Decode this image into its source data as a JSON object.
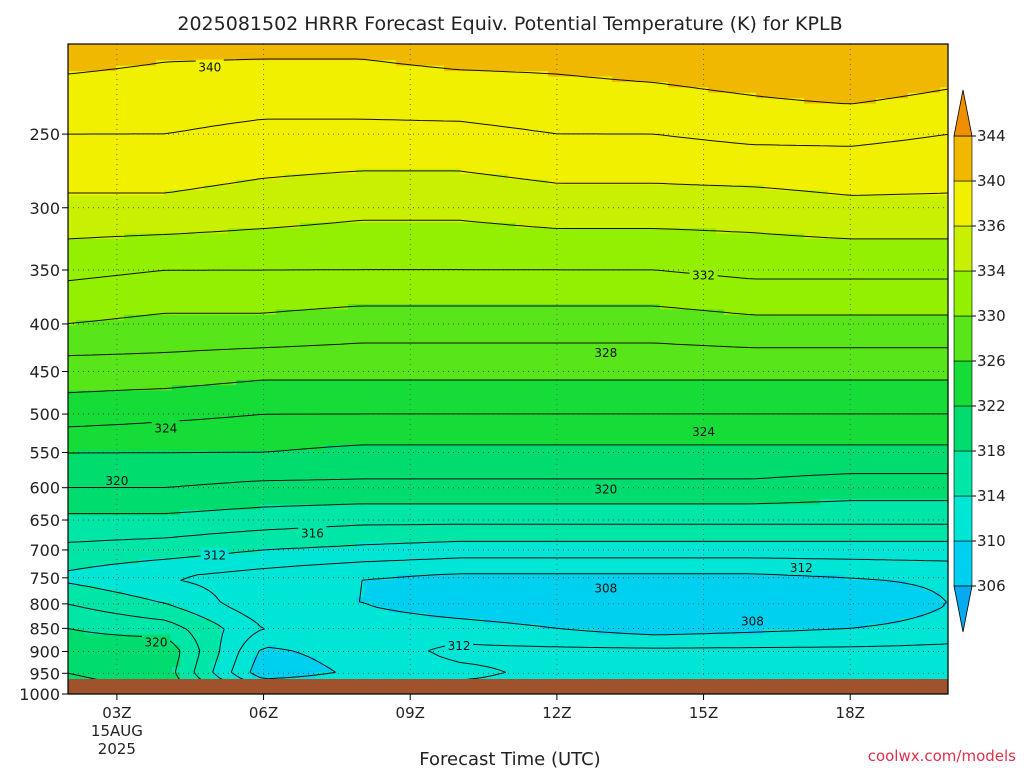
{
  "chart_data": {
    "type": "heatmap",
    "title": "2025081502 HRRR Forecast Equiv. Potential Temperature (K) for KPLB",
    "xlabel": "Forecast Time (UTC)",
    "ylabel": "",
    "x_ticks": [
      {
        "hour": 3,
        "label": "03Z",
        "sub": [
          "15AUG",
          "2025"
        ]
      },
      {
        "hour": 6,
        "label": "06Z"
      },
      {
        "hour": 9,
        "label": "09Z"
      },
      {
        "hour": 12,
        "label": "12Z"
      },
      {
        "hour": 15,
        "label": "15Z"
      },
      {
        "hour": 18,
        "label": "18Z"
      }
    ],
    "xlim": [
      2,
      20
    ],
    "y_ticks": [
      250,
      300,
      350,
      400,
      450,
      500,
      550,
      600,
      650,
      700,
      750,
      800,
      850,
      900,
      950,
      1000
    ],
    "y_tick_labels": [
      "250",
      "300",
      "350",
      "400",
      "450",
      "500",
      "550",
      "600",
      "650",
      "700",
      "750",
      "800",
      "850",
      "900",
      "950",
      "1000"
    ],
    "ylim": [
      1000,
      200
    ],
    "y_scale": "log-pressure",
    "grid": true,
    "colorbar": {
      "levels": [
        306,
        310,
        314,
        318,
        322,
        326,
        330,
        334,
        336,
        340,
        344
      ],
      "labels": [
        "306",
        "310",
        "314",
        "318",
        "322",
        "326",
        "330",
        "334",
        "336",
        "340",
        "344"
      ],
      "colors": [
        "#06aaf0",
        "#00d0f0",
        "#00e6d6",
        "#00e6a6",
        "#00dc6e",
        "#16dc38",
        "#58e61a",
        "#92f000",
        "#c8f000",
        "#f0f000",
        "#f0b800",
        "#f09000"
      ],
      "extend": "both"
    },
    "profiles": [
      {
        "hour": 2,
        "pressures": [
          200,
          250,
          300,
          350,
          400,
          450,
          500,
          550,
          600,
          650,
          700,
          750,
          800,
          850,
          900,
          950,
          1000
        ],
        "values": [
          341,
          338,
          335.5,
          332.5,
          330,
          327,
          325,
          322,
          320,
          317.5,
          315.5,
          313.5,
          316,
          318,
          319,
          320,
          321
        ]
      },
      {
        "hour": 4,
        "pressures": [
          200,
          250,
          300,
          350,
          400,
          450,
          500,
          550,
          600,
          650,
          700,
          750,
          800,
          850,
          900,
          950,
          1000
        ],
        "values": [
          340.5,
          338,
          335.5,
          332,
          329.5,
          327,
          324.5,
          322,
          320,
          317.5,
          315,
          312,
          314,
          317,
          319.5,
          319,
          320
        ]
      },
      {
        "hour": 6,
        "pressures": [
          200,
          250,
          300,
          350,
          400,
          450,
          500,
          550,
          600,
          650,
          700,
          750,
          800,
          850,
          900,
          950,
          1000
        ],
        "values": [
          340.5,
          337.5,
          335,
          332,
          329.5,
          326.5,
          324,
          322,
          319.5,
          317,
          314,
          311,
          310.5,
          312,
          309.5,
          308.5,
          314
        ]
      },
      {
        "hour": 8,
        "pressures": [
          200,
          250,
          300,
          350,
          400,
          450,
          500,
          550,
          600,
          650,
          700,
          750,
          800,
          850,
          900,
          950,
          1000
        ],
        "values": [
          340.5,
          337.5,
          334.5,
          332,
          329,
          326.5,
          324,
          321.5,
          319.5,
          316.5,
          313.5,
          310,
          310,
          311.5,
          311,
          310.5,
          313
        ]
      },
      {
        "hour": 10,
        "pressures": [
          200,
          250,
          300,
          350,
          400,
          450,
          500,
          550,
          600,
          650,
          700,
          750,
          800,
          850,
          900,
          950,
          1000
        ],
        "values": [
          341,
          337.5,
          334.5,
          332,
          329,
          326.5,
          324,
          321.5,
          319.5,
          316.5,
          313,
          309.5,
          308.5,
          311,
          312.5,
          311.5,
          313
        ]
      },
      {
        "hour": 12,
        "pressures": [
          200,
          250,
          300,
          350,
          400,
          450,
          500,
          550,
          600,
          650,
          700,
          750,
          800,
          850,
          900,
          950,
          1000
        ],
        "values": [
          341,
          338,
          335,
          332,
          329,
          326.5,
          324,
          321.5,
          319.5,
          316.5,
          313,
          309.5,
          308,
          310,
          312.5,
          312.5,
          313
        ]
      },
      {
        "hour": 14,
        "pressures": [
          200,
          250,
          300,
          350,
          400,
          450,
          500,
          550,
          600,
          650,
          700,
          750,
          800,
          850,
          900,
          950,
          1000
        ],
        "values": [
          341.5,
          338,
          335,
          332,
          329,
          326.5,
          324,
          321.5,
          319.5,
          316.5,
          313,
          309.5,
          307,
          309,
          312.5,
          313,
          313
        ]
      },
      {
        "hour": 16,
        "pressures": [
          200,
          250,
          300,
          350,
          400,
          450,
          500,
          550,
          600,
          650,
          700,
          750,
          800,
          850,
          900,
          950,
          1000
        ],
        "values": [
          342,
          338.5,
          335,
          332.5,
          329.5,
          326.5,
          324,
          321.5,
          319.5,
          316.5,
          313,
          309.5,
          306.5,
          309.5,
          312.5,
          313,
          313
        ]
      },
      {
        "hour": 18,
        "pressures": [
          200,
          250,
          300,
          350,
          400,
          450,
          500,
          550,
          600,
          650,
          700,
          750,
          800,
          850,
          900,
          950,
          1000
        ],
        "values": [
          343,
          338.5,
          335.5,
          332.5,
          329.5,
          326.5,
          324,
          321.5,
          319,
          316.5,
          313,
          310,
          307.5,
          310,
          312.5,
          313,
          313
        ]
      },
      {
        "hour": 20,
        "pressures": [
          200,
          250,
          300,
          350,
          400,
          450,
          500,
          550,
          600,
          650,
          700,
          750,
          800,
          850,
          900,
          950,
          1000
        ],
        "values": [
          342,
          338,
          335.5,
          332.5,
          329.5,
          326.5,
          324,
          321.5,
          319,
          316.5,
          313,
          310.5,
          310,
          311,
          312.5,
          313,
          313
        ]
      }
    ],
    "contour_levels": [
      310,
      312,
      314,
      316,
      318,
      320,
      322,
      324,
      326,
      328,
      330,
      332,
      334,
      336,
      338,
      340
    ],
    "contour_labels": [
      {
        "text": "340",
        "hour": 4.9,
        "pressure": 212
      },
      {
        "text": "332",
        "hour": 15.0,
        "pressure": 355
      },
      {
        "text": "328",
        "hour": 13.0,
        "pressure": 430
      },
      {
        "text": "324",
        "hour": 4.0,
        "pressure": 518
      },
      {
        "text": "324",
        "hour": 15.0,
        "pressure": 523
      },
      {
        "text": "320",
        "hour": 3.0,
        "pressure": 590
      },
      {
        "text": "320",
        "hour": 13.0,
        "pressure": 603
      },
      {
        "text": "316",
        "hour": 7.0,
        "pressure": 672
      },
      {
        "text": "312",
        "hour": 5.0,
        "pressure": 710
      },
      {
        "text": "312",
        "hour": 17.0,
        "pressure": 732
      },
      {
        "text": "308",
        "hour": 13.0,
        "pressure": 770
      },
      {
        "text": "308",
        "hour": 16.0,
        "pressure": 836
      },
      {
        "text": "320",
        "hour": 3.8,
        "pressure": 880
      },
      {
        "text": "312",
        "hour": 10.0,
        "pressure": 888
      }
    ],
    "surface_color": "#a0522d"
  },
  "footer": {
    "credit": "coolwx.com/models",
    "credit_color": "#e0304a"
  }
}
